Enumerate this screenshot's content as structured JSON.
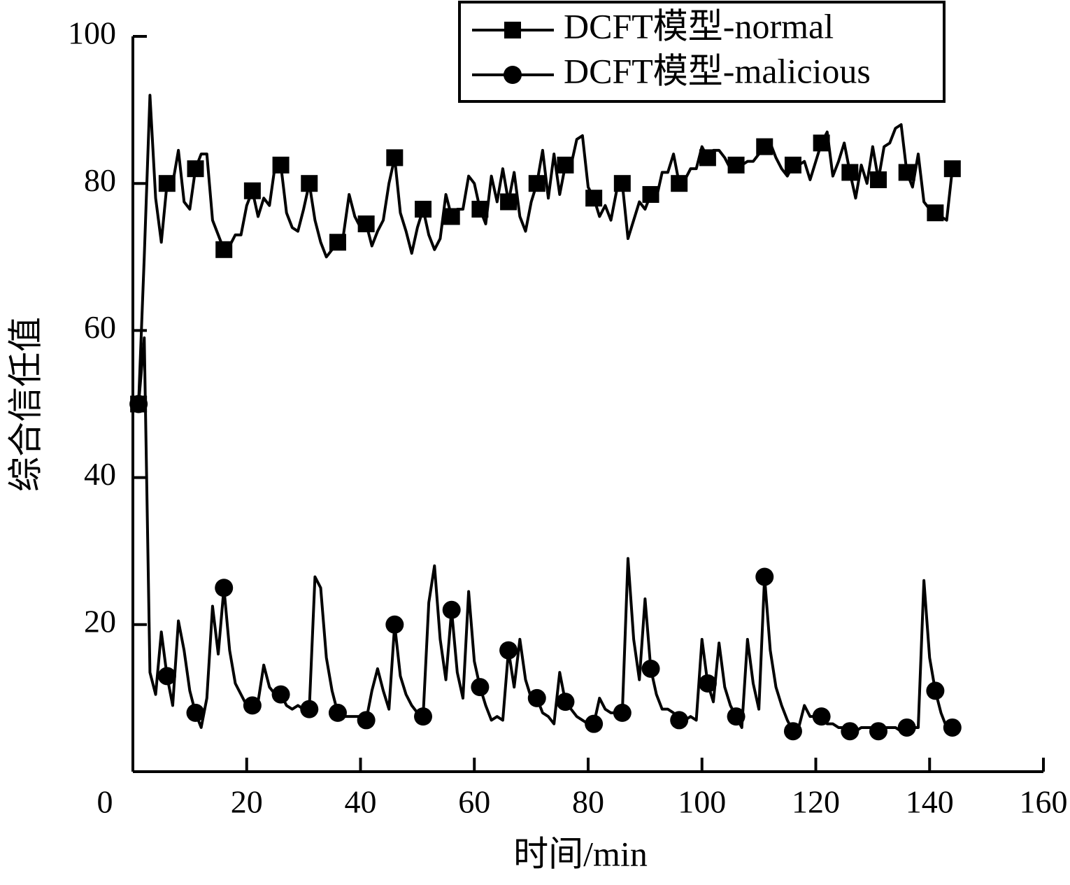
{
  "chart_data": {
    "type": "line",
    "xlabel": "时间/min",
    "ylabel": "综合信任值",
    "xlim": [
      0,
      160
    ],
    "ylim": [
      0,
      100
    ],
    "xticks": [
      0,
      20,
      40,
      60,
      80,
      100,
      120,
      140,
      160
    ],
    "yticks": [
      20,
      40,
      60,
      80,
      100
    ],
    "legend": "upper right",
    "x": [
      1,
      2,
      3,
      4,
      5,
      6,
      7,
      8,
      9,
      10,
      11,
      12,
      13,
      14,
      15,
      16,
      17,
      18,
      19,
      20,
      21,
      22,
      23,
      24,
      25,
      26,
      27,
      28,
      29,
      30,
      31,
      32,
      33,
      34,
      35,
      36,
      37,
      38,
      39,
      40,
      41,
      42,
      43,
      44,
      45,
      46,
      47,
      48,
      49,
      50,
      51,
      52,
      53,
      54,
      55,
      56,
      57,
      58,
      59,
      60,
      61,
      62,
      63,
      64,
      65,
      66,
      67,
      68,
      69,
      70,
      71,
      72,
      73,
      74,
      75,
      76,
      77,
      78,
      79,
      80,
      81,
      82,
      83,
      84,
      85,
      86,
      87,
      88,
      89,
      90,
      91,
      92,
      93,
      94,
      95,
      96,
      97,
      98,
      99,
      100,
      101,
      102,
      103,
      104,
      105,
      106,
      107,
      108,
      109,
      110,
      111,
      112,
      113,
      114,
      115,
      116,
      117,
      118,
      119,
      120,
      121,
      122,
      123,
      124,
      125,
      126,
      127,
      128,
      129,
      130,
      131,
      132,
      133,
      134,
      135,
      136,
      137,
      138,
      139,
      140,
      141,
      142,
      143,
      144
    ],
    "series": [
      {
        "name": "DCFT模型-normal",
        "color": "#000000",
        "marker": "square",
        "values": [
          50,
          70,
          92,
          78,
          72,
          80,
          80,
          84.5,
          77.5,
          76.5,
          82,
          84,
          84,
          75,
          73,
          71,
          71.5,
          73,
          73,
          77,
          79,
          75.5,
          78,
          77,
          82.5,
          82.5,
          76,
          74,
          73.5,
          76.5,
          80,
          75,
          72,
          70,
          71,
          72,
          73,
          78.5,
          75.5,
          74,
          74.5,
          71.5,
          73.5,
          75,
          80,
          83.5,
          76,
          73.5,
          70.5,
          74,
          76.5,
          73,
          71,
          72.5,
          78.5,
          75.5,
          76.5,
          76.5,
          81,
          80,
          76.5,
          74.5,
          81,
          77.5,
          82,
          77.5,
          81.5,
          75.5,
          73.5,
          77.5,
          80,
          84.5,
          78,
          84,
          78.5,
          82.5,
          82.5,
          86,
          86.5,
          79.5,
          78,
          75.5,
          77,
          75,
          79,
          80,
          72.5,
          75,
          77.5,
          76.5,
          78.5,
          78,
          81.5,
          81.5,
          84,
          80,
          80.5,
          82,
          82,
          85,
          83.5,
          84.5,
          84.5,
          83.5,
          82,
          82.5,
          82.5,
          83,
          83,
          84,
          85,
          85.5,
          83.5,
          82,
          81,
          82.5,
          82.5,
          83,
          80.5,
          83,
          85.5,
          87,
          81,
          83,
          85.5,
          81.5,
          78,
          82.5,
          80,
          85,
          80.5,
          85,
          85.5,
          87.5,
          88,
          81.5,
          79.5,
          84,
          77.5,
          76.5,
          76,
          75.5,
          75,
          82
        ]
      },
      {
        "name": "DCFT模型-malicious",
        "color": "#000000",
        "marker": "circle",
        "values": [
          50,
          59,
          13.5,
          10.5,
          19,
          13,
          9,
          20.5,
          16.5,
          11,
          8,
          6,
          10,
          22.5,
          16,
          25,
          16.5,
          12,
          10.5,
          9,
          9,
          9.5,
          14.5,
          11.5,
          10.5,
          10.5,
          9,
          8.5,
          9,
          8.5,
          8.5,
          26.5,
          25,
          15.5,
          11,
          8,
          7.5,
          7.5,
          7.5,
          7.5,
          7,
          11,
          14,
          11,
          8.5,
          20,
          13,
          10.5,
          9,
          8,
          7.5,
          23,
          28,
          18,
          12.5,
          22,
          13.5,
          10,
          24.5,
          15,
          11.5,
          9,
          7,
          7.5,
          7,
          16.5,
          11.5,
          18,
          12.5,
          10,
          10,
          8,
          7.5,
          6.5,
          13.5,
          9.5,
          8.5,
          7.5,
          7,
          6.5,
          6.5,
          10,
          8.5,
          8,
          8,
          8,
          29,
          18,
          12.5,
          23.5,
          14,
          10.5,
          8.5,
          8.5,
          8,
          7,
          7,
          7.5,
          7,
          18,
          12,
          9.5,
          17.5,
          11.5,
          9,
          7.5,
          6,
          18,
          12,
          8.5,
          26.5,
          16.5,
          11.5,
          9,
          7,
          5.5,
          6,
          9,
          7.5,
          7.5,
          7.5,
          6.5,
          6.5,
          6,
          6,
          5.5,
          5.5,
          6,
          6,
          6,
          5.5,
          6,
          6,
          6,
          5.5,
          6,
          6,
          6,
          26,
          15.5,
          11,
          8,
          6,
          6
        ]
      }
    ]
  }
}
